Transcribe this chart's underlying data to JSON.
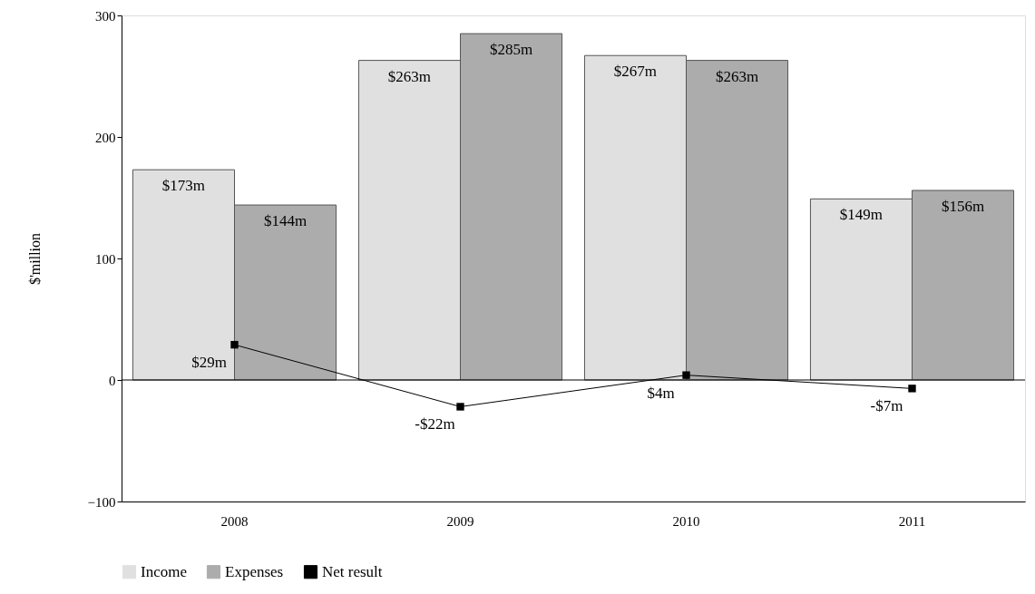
{
  "chart_data": {
    "type": "bar",
    "ylabel": "$'million",
    "categories": [
      "2008",
      "2009",
      "2010",
      "2011"
    ],
    "series": [
      {
        "name": "Income",
        "color": "#e0e0e0",
        "values": [
          173,
          263,
          267,
          149
        ],
        "value_labels": [
          "$173m",
          "$263m",
          "$267m",
          "$149m"
        ]
      },
      {
        "name": "Expenses",
        "color": "#acacac",
        "values": [
          144,
          285,
          263,
          156
        ],
        "value_labels": [
          "$144m",
          "$285m",
          "$263m",
          "$156m"
        ]
      },
      {
        "name": "Net result",
        "type": "line",
        "color": "#000000",
        "marker": "square",
        "values": [
          29,
          -22,
          4,
          -7
        ],
        "value_labels": [
          "$29m",
          "-$22m",
          "$4m",
          "-$7m"
        ]
      }
    ],
    "ylim": [
      -100,
      300
    ],
    "yticks": [
      -100,
      0,
      100,
      200,
      300
    ],
    "grid": false,
    "legend": "bottom",
    "ref_lines": [
      {
        "axis": "y",
        "value": 0
      }
    ]
  }
}
